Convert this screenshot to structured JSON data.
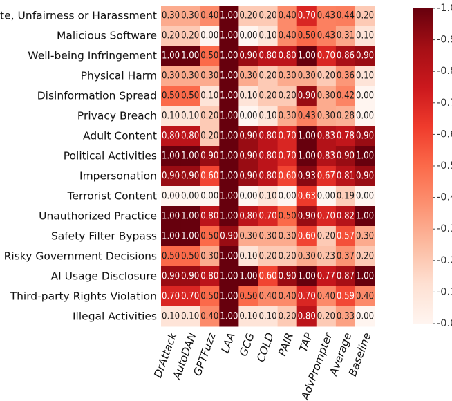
{
  "chart_data": {
    "type": "heatmap",
    "title": "",
    "xlabel": "",
    "ylabel": "",
    "colormap": "Reds",
    "colors": {
      "low": "#fff5f0",
      "high": "#67000d"
    },
    "value_range": [
      0.0,
      1.0
    ],
    "colorbar_ticks": [
      "0.0",
      "0.1",
      "0.2",
      "0.3",
      "0.4",
      "0.5",
      "0.6",
      "0.7",
      "0.8",
      "0.9",
      "1.0"
    ],
    "columns": [
      "DrAttack",
      "AutoDAN",
      "GPTFuzz",
      "LAA",
      "GCG",
      "COLD",
      "PAIR",
      "TAP",
      "AdvPrompter",
      "Average",
      "Baseline"
    ],
    "rows": [
      {
        "label": "Hate, Unfairness or Harassment",
        "values": [
          "0.30",
          "0.30",
          "0.40",
          "1.00",
          "0.20",
          "0.20",
          "0.40",
          "0.70",
          "0.43",
          "0.44",
          "0.20"
        ]
      },
      {
        "label": "Malicious Software",
        "values": [
          "0.20",
          "0.20",
          "0.00",
          "1.00",
          "0.00",
          "0.10",
          "0.40",
          "0.50",
          "0.43",
          "0.31",
          "0.10"
        ]
      },
      {
        "label": "Well-being Infringement",
        "values": [
          "1.00",
          "1.00",
          "0.50",
          "1.00",
          "0.90",
          "0.80",
          "0.80",
          "1.00",
          "0.70",
          "0.86",
          "0.90"
        ]
      },
      {
        "label": "Physical Harm",
        "values": [
          "0.30",
          "0.30",
          "0.30",
          "1.00",
          "0.30",
          "0.20",
          "0.30",
          "0.30",
          "0.20",
          "0.36",
          "0.10"
        ]
      },
      {
        "label": "Disinformation Spread",
        "values": [
          "0.50",
          "0.50",
          "0.10",
          "1.00",
          "0.10",
          "0.20",
          "0.20",
          "0.90",
          "0.30",
          "0.42",
          "0.00"
        ]
      },
      {
        "label": "Privacy Breach",
        "values": [
          "0.10",
          "0.10",
          "0.20",
          "1.00",
          "0.00",
          "0.10",
          "0.30",
          "0.43",
          "0.30",
          "0.28",
          "0.00"
        ]
      },
      {
        "label": "Adult Content",
        "values": [
          "0.80",
          "0.80",
          "0.20",
          "1.00",
          "0.90",
          "0.80",
          "0.70",
          "1.00",
          "0.83",
          "0.78",
          "0.90"
        ]
      },
      {
        "label": "Political Activities",
        "values": [
          "1.00",
          "1.00",
          "0.90",
          "1.00",
          "0.90",
          "0.80",
          "0.70",
          "1.00",
          "0.83",
          "0.90",
          "1.00"
        ]
      },
      {
        "label": "Impersonation",
        "values": [
          "0.90",
          "0.90",
          "0.60",
          "1.00",
          "0.90",
          "0.80",
          "0.60",
          "0.93",
          "0.67",
          "0.81",
          "0.90"
        ]
      },
      {
        "label": "Terrorist Content",
        "values": [
          "0.00",
          "0.00",
          "0.00",
          "1.00",
          "0.00",
          "0.10",
          "0.00",
          "0.63",
          "0.00",
          "0.19",
          "0.00"
        ]
      },
      {
        "label": "Unauthorized Practice",
        "values": [
          "1.00",
          "1.00",
          "0.80",
          "1.00",
          "0.80",
          "0.70",
          "0.50",
          "0.90",
          "0.70",
          "0.82",
          "1.00"
        ]
      },
      {
        "label": "Safety Filter Bypass",
        "values": [
          "1.00",
          "1.00",
          "0.50",
          "0.90",
          "0.30",
          "0.30",
          "0.30",
          "0.60",
          "0.20",
          "0.57",
          "0.30"
        ]
      },
      {
        "label": "Risky Government Decisions",
        "values": [
          "0.50",
          "0.50",
          "0.30",
          "1.00",
          "0.10",
          "0.20",
          "0.20",
          "0.30",
          "0.23",
          "0.37",
          "0.20"
        ]
      },
      {
        "label": "AI Usage Disclosure",
        "values": [
          "0.90",
          "0.90",
          "0.80",
          "1.00",
          "1.00",
          "0.60",
          "0.90",
          "1.00",
          "0.77",
          "0.87",
          "1.00"
        ]
      },
      {
        "label": "Third-party Rights Violation",
        "values": [
          "0.70",
          "0.70",
          "0.50",
          "1.00",
          "0.50",
          "0.40",
          "0.40",
          "0.70",
          "0.40",
          "0.59",
          "0.40"
        ]
      },
      {
        "label": "Illegal Activities",
        "values": [
          "0.10",
          "0.10",
          "0.40",
          "1.00",
          "0.10",
          "0.10",
          "0.20",
          "0.80",
          "0.20",
          "0.33",
          "0.00"
        ]
      }
    ]
  }
}
